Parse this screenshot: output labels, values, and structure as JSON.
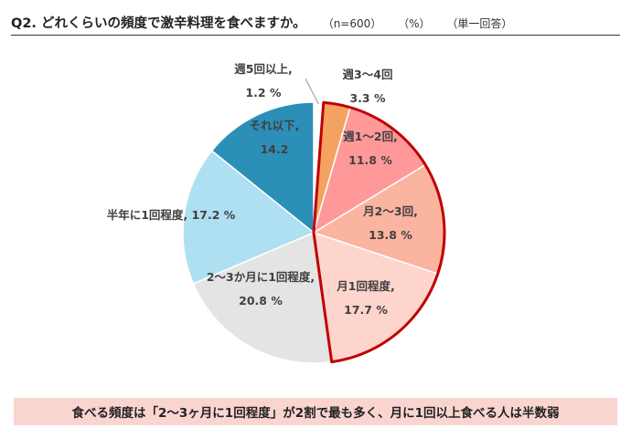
{
  "header": {
    "title": "Q2. どれくらいの頻度で激辛料理を食べますか。",
    "sample": "（n=600）",
    "unit": "（%）",
    "answer_type": "（単一回答）"
  },
  "chart_data": {
    "type": "pie",
    "unit": "%",
    "start": "12 o'clock",
    "direction": "clockwise",
    "highlighted_group": [
      "週3～4回",
      "週1～2回",
      "月2～3回",
      "月1回程度"
    ],
    "highlight_color": "#C00000",
    "slices": [
      {
        "label": "週5回以上,",
        "value": 1.2,
        "value_text": "1.2 %",
        "color": "#FFFFFF"
      },
      {
        "label": "週3～4回",
        "value": 3.3,
        "value_text": "3.3 %",
        "color": "#F4A261"
      },
      {
        "label": "週1～2回,",
        "value": 11.8,
        "value_text": "11.8 %",
        "color": "#FF9999"
      },
      {
        "label": "月2～3回,",
        "value": 13.8,
        "value_text": "13.8 %",
        "color": "#FBB4A0"
      },
      {
        "label": "月1回程度,",
        "value": 17.7,
        "value_text": "17.7 %",
        "color": "#FDD5CD"
      },
      {
        "label": "2～3か月に1回程度,",
        "value": 20.8,
        "value_text": "20.8 %",
        "color": "#E4E4E4"
      },
      {
        "label": "半年に1回程度,",
        "value": 17.2,
        "value_text": "17.2 %",
        "color": "#AEE0F2"
      },
      {
        "label": "それ以下,",
        "value": 14.2,
        "value_text": "14.2",
        "color": "#2C8FB8"
      }
    ]
  },
  "footer": {
    "summary": "食べる頻度は「2～3ヶ月に1回程度」が2割で最も多く、月に1回以上食べる人は半数弱"
  }
}
